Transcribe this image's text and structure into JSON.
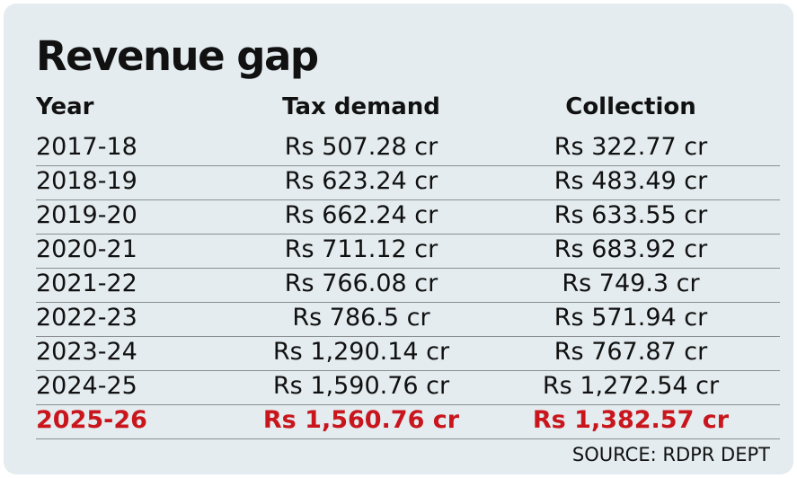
{
  "title": "Revenue gap",
  "source": "SOURCE: RDPR DEPT",
  "colors": {
    "background": "#e4ecef",
    "text": "#111111",
    "highlight": "#c9161d",
    "rule": "#8a8f92"
  },
  "chart_data": {
    "type": "table",
    "title": "Revenue gap",
    "columns": [
      "Year",
      "Tax demand",
      "Collection"
    ],
    "rows": [
      [
        "2017-18",
        "Rs 507.28 cr",
        "Rs 322.77 cr"
      ],
      [
        "2018-19",
        "Rs 623.24 cr",
        "Rs 483.49 cr"
      ],
      [
        "2019-20",
        "Rs 662.24 cr",
        "Rs 633.55 cr"
      ],
      [
        "2020-21",
        "Rs 711.12 cr",
        "Rs 683.92 cr"
      ],
      [
        "2021-22",
        "Rs 766.08 cr",
        "Rs 749.3 cr"
      ],
      [
        "2022-23",
        "Rs 786.5 cr",
        "Rs 571.94 cr"
      ],
      [
        "2023-24",
        "Rs 1,290.14 cr",
        "Rs 767.87 cr"
      ],
      [
        "2024-25",
        "Rs 1,590.76 cr",
        "Rs 1,272.54 cr"
      ],
      [
        "2025-26",
        "Rs 1,560.76 cr",
        "Rs 1,382.57 cr"
      ]
    ],
    "highlighted_row": "2025-26"
  }
}
